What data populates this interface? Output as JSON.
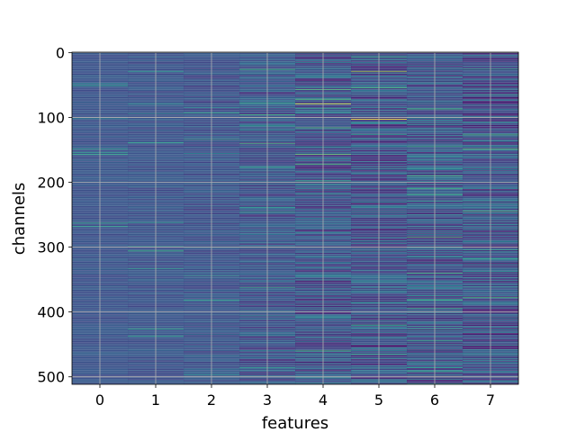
{
  "chart_data": {
    "type": "heatmap",
    "xlabel": "features",
    "ylabel": "channels",
    "x_ticks": [
      "0",
      "1",
      "2",
      "3",
      "4",
      "5",
      "6",
      "7"
    ],
    "y_ticks": [
      "0",
      "100",
      "200",
      "300",
      "400",
      "500"
    ],
    "x_range": [
      -0.5,
      7.5
    ],
    "y_range": [
      -0.5,
      511.5
    ],
    "n_channels": 512,
    "n_features": 8,
    "grid": true,
    "colormap": "viridis",
    "background_color": "#3b528b",
    "column_variability": [
      0.08,
      0.1,
      0.14,
      0.22,
      0.3,
      0.34,
      0.32,
      0.34
    ],
    "highlights": [
      {
        "feature": 4,
        "channel": 79,
        "intensity": 1.0
      },
      {
        "feature": 5,
        "channel": 103,
        "intensity": 1.0
      },
      {
        "feature": 5,
        "channel": 29,
        "intensity": 0.85
      },
      {
        "feature": 4,
        "channel": 157,
        "intensity": 0.75
      },
      {
        "feature": 6,
        "channel": 285,
        "intensity": 0.7
      },
      {
        "feature": 7,
        "channel": 245,
        "intensity": 0.7
      },
      {
        "feature": 7,
        "channel": 378,
        "intensity": 0.7
      },
      {
        "feature": 6,
        "channel": 500,
        "intensity": 0.7
      },
      {
        "feature": 3,
        "channel": 78,
        "intensity": 0.6
      }
    ]
  }
}
